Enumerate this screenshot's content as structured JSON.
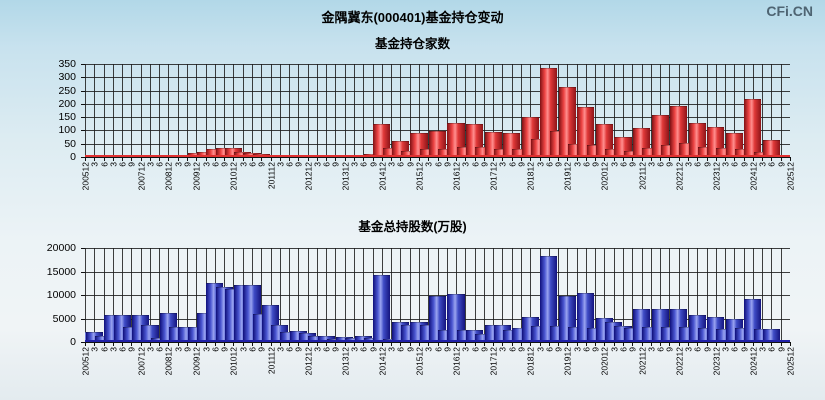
{
  "page": {
    "logo": "CFi.CN",
    "title": "金隅冀东(000401)基金持仓变动"
  },
  "chart_data": [
    {
      "type": "bar",
      "title": "基金持仓家数",
      "xlabel": "",
      "ylabel": "",
      "ylim": [
        0,
        350
      ],
      "yticks": [
        0,
        50,
        100,
        150,
        200,
        250,
        300,
        350
      ],
      "grid": true,
      "legend": "none",
      "bar_color_center": "#ff8f8f",
      "bar_color_edge": "#8c1418",
      "baseline_color": "#e03030",
      "categories": [
        "200512",
        "3",
        "6",
        "3",
        "6",
        "9",
        "200712",
        "3",
        "6",
        "200812",
        "3",
        "9",
        "200912",
        "3",
        "6",
        "9",
        "201012",
        "3",
        "6",
        "9",
        "201112",
        "3",
        "6",
        "9",
        "201212",
        "3",
        "6",
        "9",
        "201312",
        "3",
        "6",
        "9",
        "201412",
        "3",
        "6",
        "9",
        "201512",
        "3",
        "6",
        "9",
        "201612",
        "3",
        "6",
        "9",
        "201712",
        "3",
        "6",
        "9",
        "201812",
        "3",
        "6",
        "9",
        "201912",
        "3",
        "6",
        "9",
        "202012",
        "3",
        "6",
        "9",
        "202112",
        "3",
        "6",
        "9",
        "202212",
        "3",
        "6",
        "9",
        "202312",
        "3",
        "6",
        "9",
        "202412",
        "3",
        "6",
        "9",
        "202512"
      ],
      "values": [
        2,
        1,
        2,
        2,
        3,
        2,
        4,
        2,
        3,
        4,
        3,
        5,
        10,
        15,
        25,
        30,
        30,
        15,
        10,
        6,
        5,
        3,
        3,
        2,
        3,
        2,
        3,
        2,
        4,
        3,
        5,
        6,
        120,
        30,
        55,
        18,
        85,
        25,
        95,
        28,
        125,
        35,
        120,
        32,
        90,
        28,
        85,
        25,
        145,
        65,
        330,
        95,
        260,
        45,
        185,
        40,
        120,
        25,
        70,
        20,
        105,
        30,
        155,
        40,
        190,
        50,
        125,
        35,
        110,
        30,
        85,
        28,
        215,
        15,
        60,
        5,
        5
      ]
    },
    {
      "type": "bar",
      "title": "基金总持股数(万股)",
      "xlabel": "",
      "ylabel": "",
      "ylim": [
        0,
        20000
      ],
      "yticks": [
        0,
        5000,
        10000,
        15000,
        20000
      ],
      "grid": true,
      "legend": "none",
      "bar_color_center": "#9aa4f0",
      "bar_color_edge": "#14147e",
      "baseline_color": "#2121a8",
      "categories": [
        "200512",
        "3",
        "6",
        "3",
        "6",
        "9",
        "200712",
        "3",
        "6",
        "200812",
        "3",
        "9",
        "200912",
        "3",
        "6",
        "9",
        "201012",
        "3",
        "6",
        "9",
        "201112",
        "3",
        "6",
        "9",
        "201212",
        "3",
        "6",
        "9",
        "201312",
        "3",
        "6",
        "9",
        "201412",
        "3",
        "6",
        "9",
        "201512",
        "3",
        "6",
        "9",
        "201612",
        "3",
        "6",
        "9",
        "201712",
        "3",
        "6",
        "9",
        "201812",
        "3",
        "6",
        "9",
        "201912",
        "3",
        "6",
        "9",
        "202012",
        "3",
        "6",
        "9",
        "202112",
        "3",
        "6",
        "9",
        "202212",
        "3",
        "6",
        "9",
        "202312",
        "3",
        "6",
        "9",
        "202412",
        "3",
        "6",
        "9",
        "202512"
      ],
      "values": [
        2000,
        2000,
        1100,
        5500,
        5500,
        2900,
        5500,
        3300,
        700,
        6000,
        3000,
        3000,
        2900,
        6000,
        12300,
        11400,
        11100,
        12000,
        12000,
        5800,
        7600,
        3300,
        2000,
        2200,
        1600,
        1000,
        1000,
        500,
        800,
        700,
        1000,
        700,
        14000,
        500,
        4000,
        3350,
        4000,
        3350,
        9500,
        2300,
        10000,
        2350,
        2350,
        1500,
        3400,
        3400,
        2300,
        2800,
        5100,
        3100,
        18000,
        3100,
        9500,
        2900,
        10250,
        2800,
        4850,
        4100,
        3200,
        2800,
        6800,
        3000,
        6800,
        3000,
        6800,
        3000,
        5500,
        2800,
        5000,
        2600,
        4600,
        2800,
        9000,
        2500,
        2500,
        300,
        150
      ]
    }
  ]
}
